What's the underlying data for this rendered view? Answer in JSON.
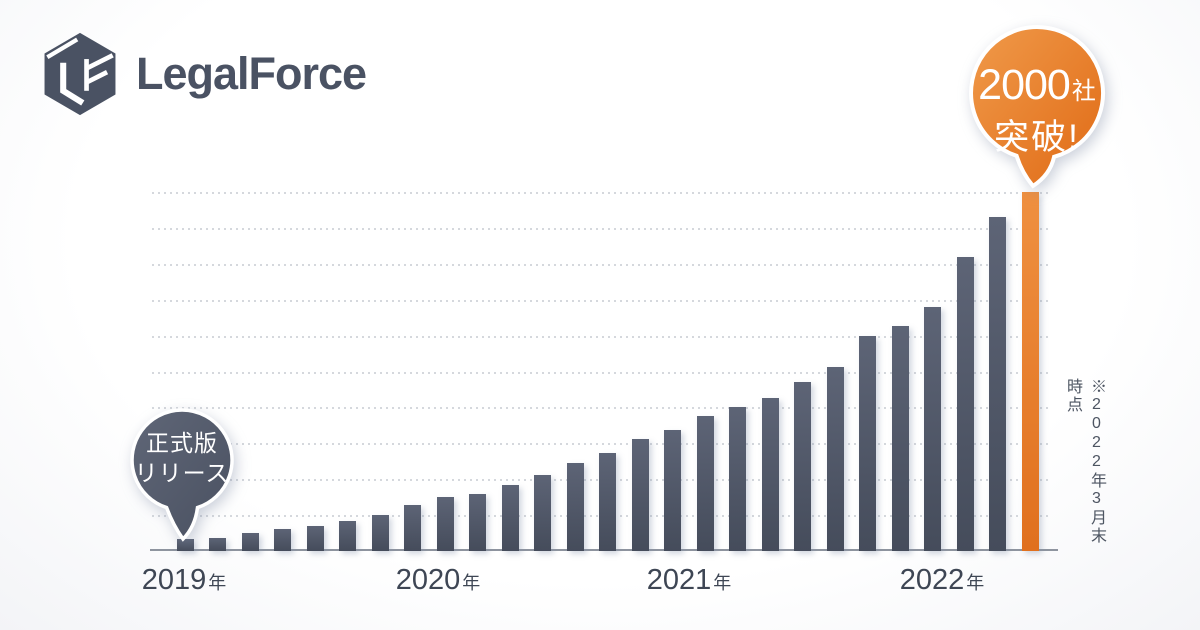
{
  "header": {
    "logo_text": "LegalForce"
  },
  "badge": {
    "number": "2000",
    "unit": "社",
    "line2": "突破!"
  },
  "release_balloon": {
    "line1": "正式版",
    "line2": "リリース"
  },
  "footnote": "※2022年3月末時点",
  "colors": {
    "ink": "#3e4654",
    "ink-logo": "#4a5263",
    "bar-top": "#5d6476",
    "bar-bottom": "#454c5b",
    "accent-top": "#ef9040",
    "accent-bottom": "#e0701e",
    "badge-light": "#f09a4a",
    "badge-dark": "#e06a15",
    "balloon-light": "#5f6677",
    "balloon-dark": "#4a5161",
    "grid": "#d5d8dd",
    "axis": "#8e949f"
  },
  "chart_data": {
    "type": "bar",
    "title": "2000社突破!",
    "y_unit": "社",
    "values": [
      65,
      75,
      100,
      120,
      140,
      165,
      200,
      255,
      300,
      320,
      365,
      425,
      490,
      545,
      625,
      675,
      750,
      800,
      855,
      940,
      1025,
      1200,
      1255,
      1360,
      1640,
      1860,
      2000
    ],
    "ylim": [
      0,
      2000
    ],
    "gridline_interval": 200,
    "grid_style": "dotted-horizontal",
    "highlight_index": 26,
    "year_labels": [
      {
        "value": "2019",
        "unit": "年"
      },
      {
        "value": "2020",
        "unit": "年"
      },
      {
        "value": "2021",
        "unit": "年"
      },
      {
        "value": "2022",
        "unit": "年"
      }
    ],
    "annotations": [
      {
        "text": "正式版リリース",
        "target": "first-bar"
      },
      {
        "text": "2000社突破!",
        "target": "last-bar"
      },
      {
        "text": "※2022年3月末時点",
        "target": "axis-end"
      }
    ]
  }
}
